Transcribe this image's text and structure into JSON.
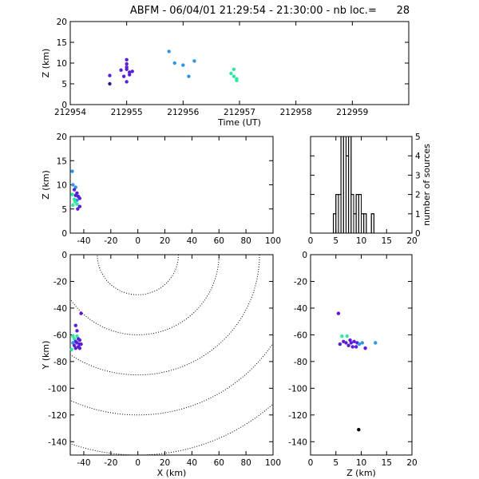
{
  "title": "ABFM - 06/04/01 21:29:54 - 21:30:00 - nb loc.=      28",
  "colors": {
    "blue_violet": "#5a1fd8",
    "dark_navy": "#1e1b8a",
    "sky_blue": "#2f95e8",
    "mint_green": "#2fe8a0",
    "violet": "#6b10c9",
    "black": "#000000"
  },
  "chart_data": [
    {
      "id": "time_height",
      "type": "scatter",
      "xlabel": "Time (UT)",
      "ylabel": "Z (km)",
      "xlim": [
        212954,
        212960
      ],
      "ylim": [
        0,
        20
      ],
      "xticks": [
        "212954",
        "212955",
        "212956",
        "212957",
        "212958",
        "212959"
      ],
      "yticks": [
        "0",
        "5",
        "10",
        "15",
        "20"
      ],
      "points": [
        {
          "x": 212954.7,
          "y": 5.0,
          "c": "dark_navy"
        },
        {
          "x": 212954.7,
          "y": 7.0,
          "c": "blue_violet"
        },
        {
          "x": 212954.9,
          "y": 8.3,
          "c": "blue_violet"
        },
        {
          "x": 212955.0,
          "y": 10.8,
          "c": "blue_violet"
        },
        {
          "x": 212955.0,
          "y": 9.8,
          "c": "blue_violet"
        },
        {
          "x": 212955.0,
          "y": 9.0,
          "c": "blue_violet"
        },
        {
          "x": 212955.0,
          "y": 8.5,
          "c": "blue_violet"
        },
        {
          "x": 212955.05,
          "y": 7.8,
          "c": "blue_violet"
        },
        {
          "x": 212955.05,
          "y": 7.2,
          "c": "blue_violet"
        },
        {
          "x": 212954.95,
          "y": 6.8,
          "c": "blue_violet"
        },
        {
          "x": 212955.0,
          "y": 5.5,
          "c": "blue_violet"
        },
        {
          "x": 212955.1,
          "y": 8.0,
          "c": "blue_violet"
        },
        {
          "x": 212955.75,
          "y": 12.8,
          "c": "sky_blue"
        },
        {
          "x": 212955.85,
          "y": 10.0,
          "c": "sky_blue"
        },
        {
          "x": 212956.0,
          "y": 9.5,
          "c": "sky_blue"
        },
        {
          "x": 212956.2,
          "y": 10.5,
          "c": "sky_blue"
        },
        {
          "x": 212956.1,
          "y": 6.8,
          "c": "sky_blue"
        },
        {
          "x": 212956.9,
          "y": 8.5,
          "c": "mint_green"
        },
        {
          "x": 212956.85,
          "y": 7.5,
          "c": "mint_green"
        },
        {
          "x": 212956.9,
          "y": 6.8,
          "c": "mint_green"
        },
        {
          "x": 212956.95,
          "y": 6.2,
          "c": "mint_green"
        },
        {
          "x": 212956.95,
          "y": 5.8,
          "c": "mint_green"
        }
      ]
    },
    {
      "id": "xz_plane",
      "type": "scatter",
      "xlabel": "",
      "ylabel": "Z (km)",
      "xlim": [
        -50,
        100
      ],
      "ylim": [
        0,
        20
      ],
      "xticks": [
        "-40",
        "-20",
        "0",
        "20",
        "40",
        "60",
        "80",
        "100"
      ],
      "yticks": [
        "0",
        "5",
        "10",
        "15",
        "20"
      ],
      "points": [
        {
          "x": -48.5,
          "y": 12.8,
          "c": "sky_blue"
        },
        {
          "x": -48,
          "y": 10.0,
          "c": "sky_blue"
        },
        {
          "x": -46,
          "y": 9.5,
          "c": "sky_blue"
        },
        {
          "x": -47,
          "y": 9.0,
          "c": "blue_violet"
        },
        {
          "x": -45,
          "y": 8.3,
          "c": "blue_violet"
        },
        {
          "x": -48.5,
          "y": 8.0,
          "c": "mint_green"
        },
        {
          "x": -46,
          "y": 7.8,
          "c": "blue_violet"
        },
        {
          "x": -44,
          "y": 7.6,
          "c": "blue_violet"
        },
        {
          "x": -43,
          "y": 7.2,
          "c": "blue_violet"
        },
        {
          "x": -47,
          "y": 7.0,
          "c": "mint_green"
        },
        {
          "x": -45,
          "y": 6.8,
          "c": "sky_blue"
        },
        {
          "x": -46.5,
          "y": 6.5,
          "c": "mint_green"
        },
        {
          "x": -45,
          "y": 6.0,
          "c": "mint_green"
        },
        {
          "x": -43,
          "y": 5.5,
          "c": "blue_violet"
        },
        {
          "x": -44.5,
          "y": 5.0,
          "c": "blue_violet"
        },
        {
          "x": -48,
          "y": 5.8,
          "c": "mint_green"
        }
      ]
    },
    {
      "id": "z_histogram",
      "type": "bar",
      "xlabel": "",
      "ylabel": "number of sources",
      "xlim": [
        0,
        20
      ],
      "ylim": [
        0,
        5
      ],
      "xticks": [
        "0",
        "5",
        "10",
        "15",
        "20"
      ],
      "yticks": [
        "0",
        "1",
        "2",
        "3",
        "4",
        "5"
      ],
      "bin_width": 0.5,
      "bins": [
        {
          "x": 0,
          "count": 0
        },
        {
          "x": 4.5,
          "count": 1
        },
        {
          "x": 5.0,
          "count": 2
        },
        {
          "x": 5.5,
          "count": 2
        },
        {
          "x": 6.0,
          "count": 5
        },
        {
          "x": 6.5,
          "count": 5
        },
        {
          "x": 7.0,
          "count": 4
        },
        {
          "x": 7.5,
          "count": 5
        },
        {
          "x": 8.0,
          "count": 2
        },
        {
          "x": 8.5,
          "count": 1
        },
        {
          "x": 9.0,
          "count": 2
        },
        {
          "x": 9.5,
          "count": 2
        },
        {
          "x": 10.0,
          "count": 1
        },
        {
          "x": 10.5,
          "count": 1
        },
        {
          "x": 11.0,
          "count": 0
        },
        {
          "x": 12.0,
          "count": 1
        },
        {
          "x": 12.5,
          "count": 0
        }
      ]
    },
    {
      "id": "plan_view",
      "type": "scatter",
      "xlabel": "X (km)",
      "ylabel": "Y (km)",
      "xlim": [
        -50,
        100
      ],
      "ylim": [
        -150,
        0
      ],
      "xticks": [
        "-40",
        "-20",
        "0",
        "20",
        "40",
        "60",
        "80",
        "100"
      ],
      "yticks": [
        "-140",
        "-120",
        "-100",
        "-80",
        "-60",
        "-40",
        "-20",
        "0"
      ],
      "contour_center": [
        0,
        0
      ],
      "contour_radii": [
        30,
        60,
        90,
        120,
        150
      ],
      "points": [
        {
          "x": -42,
          "y": -44,
          "c": "violet"
        },
        {
          "x": -46,
          "y": -53,
          "c": "blue_violet"
        },
        {
          "x": -45,
          "y": -57,
          "c": "blue_violet"
        },
        {
          "x": -48,
          "y": -61,
          "c": "mint_green"
        },
        {
          "x": -45,
          "y": -61,
          "c": "mint_green"
        },
        {
          "x": -47,
          "y": -63,
          "c": "mint_green"
        },
        {
          "x": -44,
          "y": -63,
          "c": "blue_violet"
        },
        {
          "x": -46,
          "y": -65,
          "c": "blue_violet"
        },
        {
          "x": -43,
          "y": -64,
          "c": "blue_violet"
        },
        {
          "x": -48,
          "y": -66,
          "c": "sky_blue"
        },
        {
          "x": -45,
          "y": -66,
          "c": "blue_violet"
        },
        {
          "x": -43,
          "y": -67,
          "c": "blue_violet"
        },
        {
          "x": -47,
          "y": -68,
          "c": "blue_violet"
        },
        {
          "x": -44,
          "y": -69,
          "c": "blue_violet"
        },
        {
          "x": -42,
          "y": -67,
          "c": "blue_violet"
        },
        {
          "x": -46,
          "y": -70,
          "c": "blue_violet"
        },
        {
          "x": -43,
          "y": -70,
          "c": "blue_violet"
        },
        {
          "x": -49,
          "y": -71,
          "c": "mint_green"
        }
      ]
    },
    {
      "id": "zy_plane",
      "type": "scatter",
      "xlabel": "Z (km)",
      "ylabel": "",
      "xlim": [
        0,
        20
      ],
      "ylim": [
        -150,
        0
      ],
      "xticks": [
        "0",
        "5",
        "10",
        "15",
        "20"
      ],
      "yticks": [
        "-140",
        "-120",
        "-100",
        "-80",
        "-60",
        "-40",
        "-20",
        "0"
      ],
      "points": [
        {
          "x": 5.5,
          "y": -44,
          "c": "violet"
        },
        {
          "x": 6.2,
          "y": -61,
          "c": "mint_green"
        },
        {
          "x": 7.2,
          "y": -61,
          "c": "mint_green"
        },
        {
          "x": 7.8,
          "y": -64,
          "c": "blue_violet"
        },
        {
          "x": 6.5,
          "y": -65,
          "c": "blue_violet"
        },
        {
          "x": 7.0,
          "y": -66,
          "c": "blue_violet"
        },
        {
          "x": 8.0,
          "y": -66,
          "c": "blue_violet"
        },
        {
          "x": 8.6,
          "y": -65,
          "c": "blue_violet"
        },
        {
          "x": 9.2,
          "y": -66,
          "c": "blue_violet"
        },
        {
          "x": 9.6,
          "y": -67,
          "c": "sky_blue"
        },
        {
          "x": 10.2,
          "y": -66,
          "c": "sky_blue"
        },
        {
          "x": 12.8,
          "y": -66,
          "c": "sky_blue"
        },
        {
          "x": 5.8,
          "y": -67,
          "c": "blue_violet"
        },
        {
          "x": 7.5,
          "y": -68,
          "c": "blue_violet"
        },
        {
          "x": 8.3,
          "y": -69,
          "c": "blue_violet"
        },
        {
          "x": 9.0,
          "y": -69,
          "c": "blue_violet"
        },
        {
          "x": 10.8,
          "y": -70,
          "c": "blue_violet"
        },
        {
          "x": 9.5,
          "y": -131,
          "c": "black"
        }
      ]
    }
  ]
}
